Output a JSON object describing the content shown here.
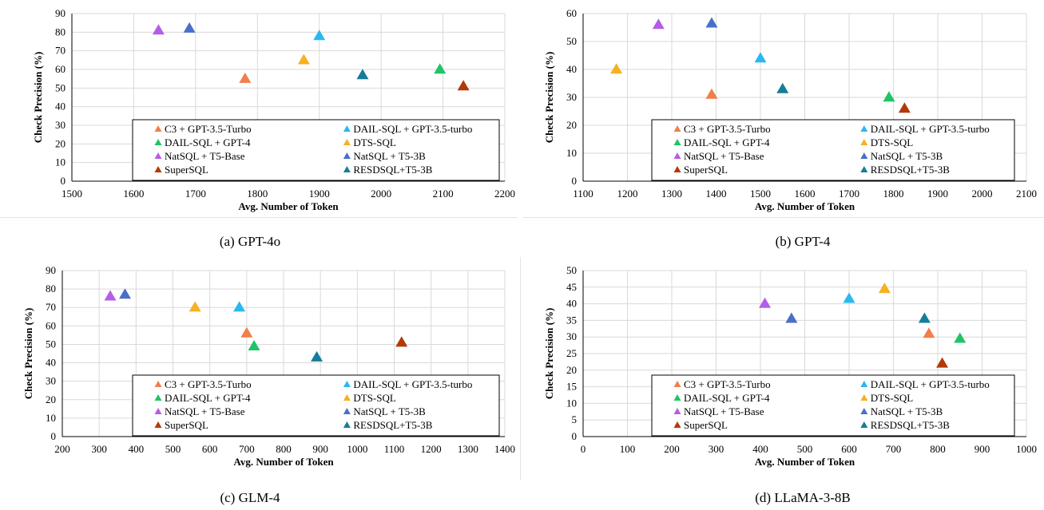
{
  "legend_entries": [
    {
      "name": "C3 + GPT-3.5-Turbo",
      "color": "#f07f4a"
    },
    {
      "name": "DAIL-SQL + GPT-3.5-turbo",
      "color": "#29b9ee"
    },
    {
      "name": "DAIL-SQL + GPT-4",
      "color": "#1ec466"
    },
    {
      "name": "DTS-SQL",
      "color": "#f5b120"
    },
    {
      "name": "NatSQL + T5-Base",
      "color": "#b55de6"
    },
    {
      "name": "NatSQL + T5-3B",
      "color": "#4a6fca"
    },
    {
      "name": "SuperSQL",
      "color": "#b33a07"
    },
    {
      "name": "RESDSQL+T5-3B",
      "color": "#157d98"
    }
  ],
  "chart_data": [
    {
      "type": "scatter",
      "caption": "(a) GPT-4o",
      "xlabel": "Avg. Number of Token",
      "ylabel": "Check  Precision (%)",
      "xlim": [
        1500,
        2200
      ],
      "xticks": [
        1500,
        1600,
        1700,
        1800,
        1900,
        2000,
        2100,
        2200
      ],
      "ylim": [
        0,
        90
      ],
      "yticks": [
        0,
        10,
        20,
        30,
        40,
        50,
        60,
        70,
        80,
        90
      ],
      "grid": true,
      "legend_position": "bottom-right",
      "series": [
        {
          "name": "C3 + GPT-3.5-Turbo",
          "x": 1780,
          "y": 55
        },
        {
          "name": "DAIL-SQL + GPT-3.5-turbo",
          "x": 1900,
          "y": 78
        },
        {
          "name": "DAIL-SQL + GPT-4",
          "x": 2095,
          "y": 60
        },
        {
          "name": "DTS-SQL",
          "x": 1875,
          "y": 65
        },
        {
          "name": "NatSQL + T5-Base",
          "x": 1640,
          "y": 81
        },
        {
          "name": "NatSQL + T5-3B",
          "x": 1690,
          "y": 82
        },
        {
          "name": "SuperSQL",
          "x": 2133,
          "y": 51
        },
        {
          "name": "RESDSQL+T5-3B",
          "x": 1970,
          "y": 57
        }
      ]
    },
    {
      "type": "scatter",
      "caption": "(b) GPT-4",
      "xlabel": "Avg. Number of Token",
      "ylabel": "Check  Precision (%)",
      "xlim": [
        1100,
        2100
      ],
      "xticks": [
        1100,
        1200,
        1300,
        1400,
        1500,
        1600,
        1700,
        1800,
        1900,
        2000,
        2100
      ],
      "ylim": [
        0,
        60
      ],
      "yticks": [
        0,
        10,
        20,
        30,
        40,
        50,
        60
      ],
      "grid": true,
      "legend_position": "bottom-right",
      "series": [
        {
          "name": "C3 + GPT-3.5-Turbo",
          "x": 1390,
          "y": 31
        },
        {
          "name": "DAIL-SQL + GPT-3.5-turbo",
          "x": 1500,
          "y": 44
        },
        {
          "name": "DAIL-SQL + GPT-4",
          "x": 1790,
          "y": 30
        },
        {
          "name": "DTS-SQL",
          "x": 1175,
          "y": 40
        },
        {
          "name": "NatSQL + T5-Base",
          "x": 1270,
          "y": 56
        },
        {
          "name": "NatSQL + T5-3B",
          "x": 1390,
          "y": 56.5
        },
        {
          "name": "SuperSQL",
          "x": 1825,
          "y": 26
        },
        {
          "name": "RESDSQL+T5-3B",
          "x": 1550,
          "y": 33
        }
      ]
    },
    {
      "type": "scatter",
      "caption": "(c) GLM-4",
      "xlabel": "Avg. Number of Token",
      "ylabel": "Check  Precision (%)",
      "xlim": [
        200,
        1400
      ],
      "xticks": [
        200,
        300,
        400,
        500,
        600,
        700,
        800,
        900,
        1000,
        1100,
        1200,
        1300,
        1400
      ],
      "ylim": [
        0,
        90
      ],
      "yticks": [
        0,
        10,
        20,
        30,
        40,
        50,
        60,
        70,
        80,
        90
      ],
      "grid": true,
      "legend_position": "bottom-right",
      "series": [
        {
          "name": "C3 + GPT-3.5-Turbo",
          "x": 700,
          "y": 56
        },
        {
          "name": "DAIL-SQL + GPT-3.5-turbo",
          "x": 680,
          "y": 70
        },
        {
          "name": "DAIL-SQL + GPT-4",
          "x": 720,
          "y": 49
        },
        {
          "name": "DTS-SQL",
          "x": 560,
          "y": 70
        },
        {
          "name": "NatSQL + T5-Base",
          "x": 330,
          "y": 76
        },
        {
          "name": "NatSQL + T5-3B",
          "x": 370,
          "y": 77
        },
        {
          "name": "SuperSQL",
          "x": 1120,
          "y": 51
        },
        {
          "name": "RESDSQL+T5-3B",
          "x": 890,
          "y": 43
        }
      ]
    },
    {
      "type": "scatter",
      "caption": "(d) LLaMA-3-8B",
      "xlabel": "Avg. Number of Token",
      "ylabel": "Check  Precision (%)",
      "xlim": [
        0,
        1000
      ],
      "xticks": [
        0,
        100,
        200,
        300,
        400,
        500,
        600,
        700,
        800,
        900,
        1000
      ],
      "ylim": [
        0,
        50
      ],
      "yticks": [
        0,
        5,
        10,
        15,
        20,
        25,
        30,
        35,
        40,
        45,
        50
      ],
      "grid": true,
      "legend_position": "bottom-right",
      "series": [
        {
          "name": "C3 + GPT-3.5-Turbo",
          "x": 780,
          "y": 31
        },
        {
          "name": "DAIL-SQL + GPT-3.5-turbo",
          "x": 600,
          "y": 41.5
        },
        {
          "name": "DAIL-SQL + GPT-4",
          "x": 850,
          "y": 29.5
        },
        {
          "name": "DTS-SQL",
          "x": 680,
          "y": 44.5
        },
        {
          "name": "NatSQL + T5-Base",
          "x": 410,
          "y": 40
        },
        {
          "name": "NatSQL + T5-3B",
          "x": 470,
          "y": 35.5
        },
        {
          "name": "SuperSQL",
          "x": 810,
          "y": 22
        },
        {
          "name": "RESDSQL+T5-3B",
          "x": 770,
          "y": 35.5
        }
      ]
    }
  ]
}
